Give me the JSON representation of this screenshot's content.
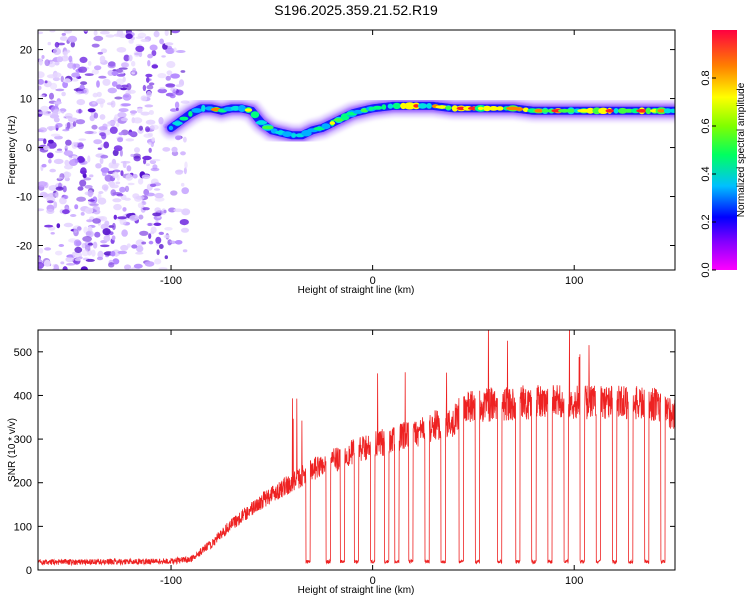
{
  "title": "S196.2025.359.21.52.R19",
  "chart_data": [
    {
      "type": "heatmap",
      "name": "spectrogram",
      "xlabel": "Height of straight line (km)",
      "ylabel": "Frequency (Hz)",
      "xlim": [
        -166,
        150
      ],
      "ylim": [
        -25,
        24
      ],
      "xticks": [
        -100,
        0,
        100
      ],
      "yticks": [
        -20,
        -10,
        0,
        10,
        20
      ],
      "xtick_labels": [
        "-100",
        "0",
        "100"
      ],
      "ytick_labels": [
        "-20",
        "-10",
        "0",
        "10",
        "20"
      ],
      "colorbar": {
        "label": "Normalized spectral amplitude",
        "range": [
          0,
          1
        ],
        "ticks": [
          0.0,
          0.2,
          0.4,
          0.6,
          0.8
        ],
        "tick_labels": [
          "0.0",
          "0.2",
          "0.4",
          "0.6",
          "0.8"
        ]
      },
      "ridge": {
        "x": [
          -100,
          -95,
          -90,
          -85,
          -80,
          -75,
          -70,
          -65,
          -60,
          -55,
          -50,
          -45,
          -40,
          -35,
          -30,
          -25,
          -20,
          -15,
          -10,
          -5,
          0,
          10,
          20,
          30,
          40,
          50,
          60,
          70,
          80,
          90,
          100,
          110,
          120,
          130,
          140,
          150
        ],
        "freq": [
          4,
          5.5,
          7,
          8,
          8,
          7.5,
          8,
          8,
          7.5,
          5,
          3.5,
          3,
          2.5,
          2.5,
          3.5,
          4,
          5,
          6,
          7,
          7.5,
          8,
          8.5,
          8.5,
          8.5,
          8,
          8,
          8,
          8,
          7.5,
          7.5,
          7.5,
          7.5,
          7.5,
          7.5,
          7.5,
          7.5
        ]
      },
      "noise_region_x": [
        -166,
        -92
      ]
    },
    {
      "type": "line",
      "name": "snr",
      "xlabel": "Height of straight line (km)",
      "ylabel": "SNR (10 * v/v)",
      "xlim": [
        -166,
        150
      ],
      "ylim": [
        0,
        550
      ],
      "xticks": [
        -100,
        0,
        100
      ],
      "yticks": [
        0,
        100,
        200,
        300,
        400,
        500
      ],
      "xtick_labels": [
        "-100",
        "0",
        "100"
      ],
      "ytick_labels": [
        "0",
        "100",
        "200",
        "300",
        "400",
        "500"
      ],
      "color": "#ee2222",
      "trend": {
        "x": [
          -166,
          -100,
          -90,
          -80,
          -70,
          -60,
          -50,
          -40,
          -30,
          -20,
          -10,
          0,
          10,
          20,
          30,
          40,
          45,
          60,
          80,
          100,
          120,
          140,
          150
        ],
        "y": [
          18,
          20,
          25,
          60,
          105,
          140,
          175,
          200,
          230,
          250,
          270,
          285,
          300,
          310,
          330,
          340,
          370,
          380,
          385,
          385,
          385,
          380,
          355
        ]
      },
      "dropouts_x": [
        -32,
        -22,
        -15,
        -8,
        0,
        7,
        12,
        19,
        27,
        35,
        44,
        52,
        63,
        72,
        80,
        88,
        96,
        104,
        112,
        120,
        128,
        136,
        144
      ],
      "dropout_level": 15
    }
  ]
}
